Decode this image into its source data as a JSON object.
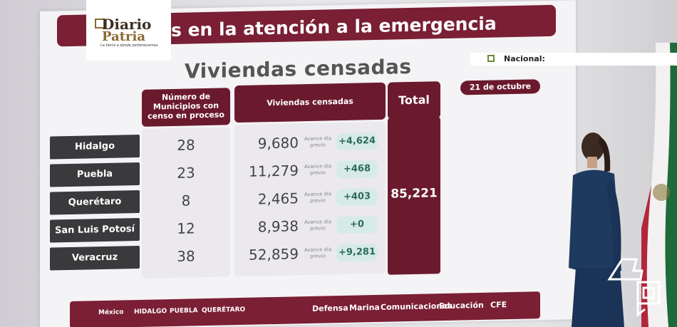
{
  "slide": {
    "banner_title": "s en la atención a la emergencia",
    "subtitle": "Viviendas censadas",
    "date": "21 de octubre",
    "headers": {
      "municipios": "Número de Municipios con censo en proceso",
      "viviendas": "Viviendas censadas",
      "total": "Total"
    },
    "avance_label": "Avance día previo",
    "rows": [
      {
        "state": "Hidalgo",
        "municipios": "28",
        "viviendas": "9,680",
        "delta": "+4,624"
      },
      {
        "state": "Puebla",
        "municipios": "23",
        "viviendas": "11,279",
        "delta": "+468"
      },
      {
        "state": "Querétaro",
        "municipios": "8",
        "viviendas": "2,465",
        "delta": "+403"
      },
      {
        "state": "San Luis Potosí",
        "municipios": "12",
        "viviendas": "8,938",
        "delta": "+0"
      },
      {
        "state": "Veracruz",
        "municipios": "38",
        "viviendas": "52,859",
        "delta": "+9,281"
      }
    ],
    "total_value": "85,221",
    "footer_logos": [
      "México",
      "HIDALGO",
      "PUEBLA",
      "QUERÉTARO",
      "Defensa",
      "Marina",
      "Comunicaciones",
      "Educación",
      "CFE"
    ]
  },
  "overlay": {
    "brand_top": "Diario",
    "brand_bottom": "Patria",
    "brand_tagline": "La tierra a donde pertenecemos",
    "section_label": "Nacional:"
  },
  "colors": {
    "guinda": "#6b1a2e",
    "state_bg": "#3a3a3c",
    "delta_bg": "#d6ebe5",
    "delta_text": "#2d6a5d",
    "brand_gold": "#8a6a2f"
  }
}
